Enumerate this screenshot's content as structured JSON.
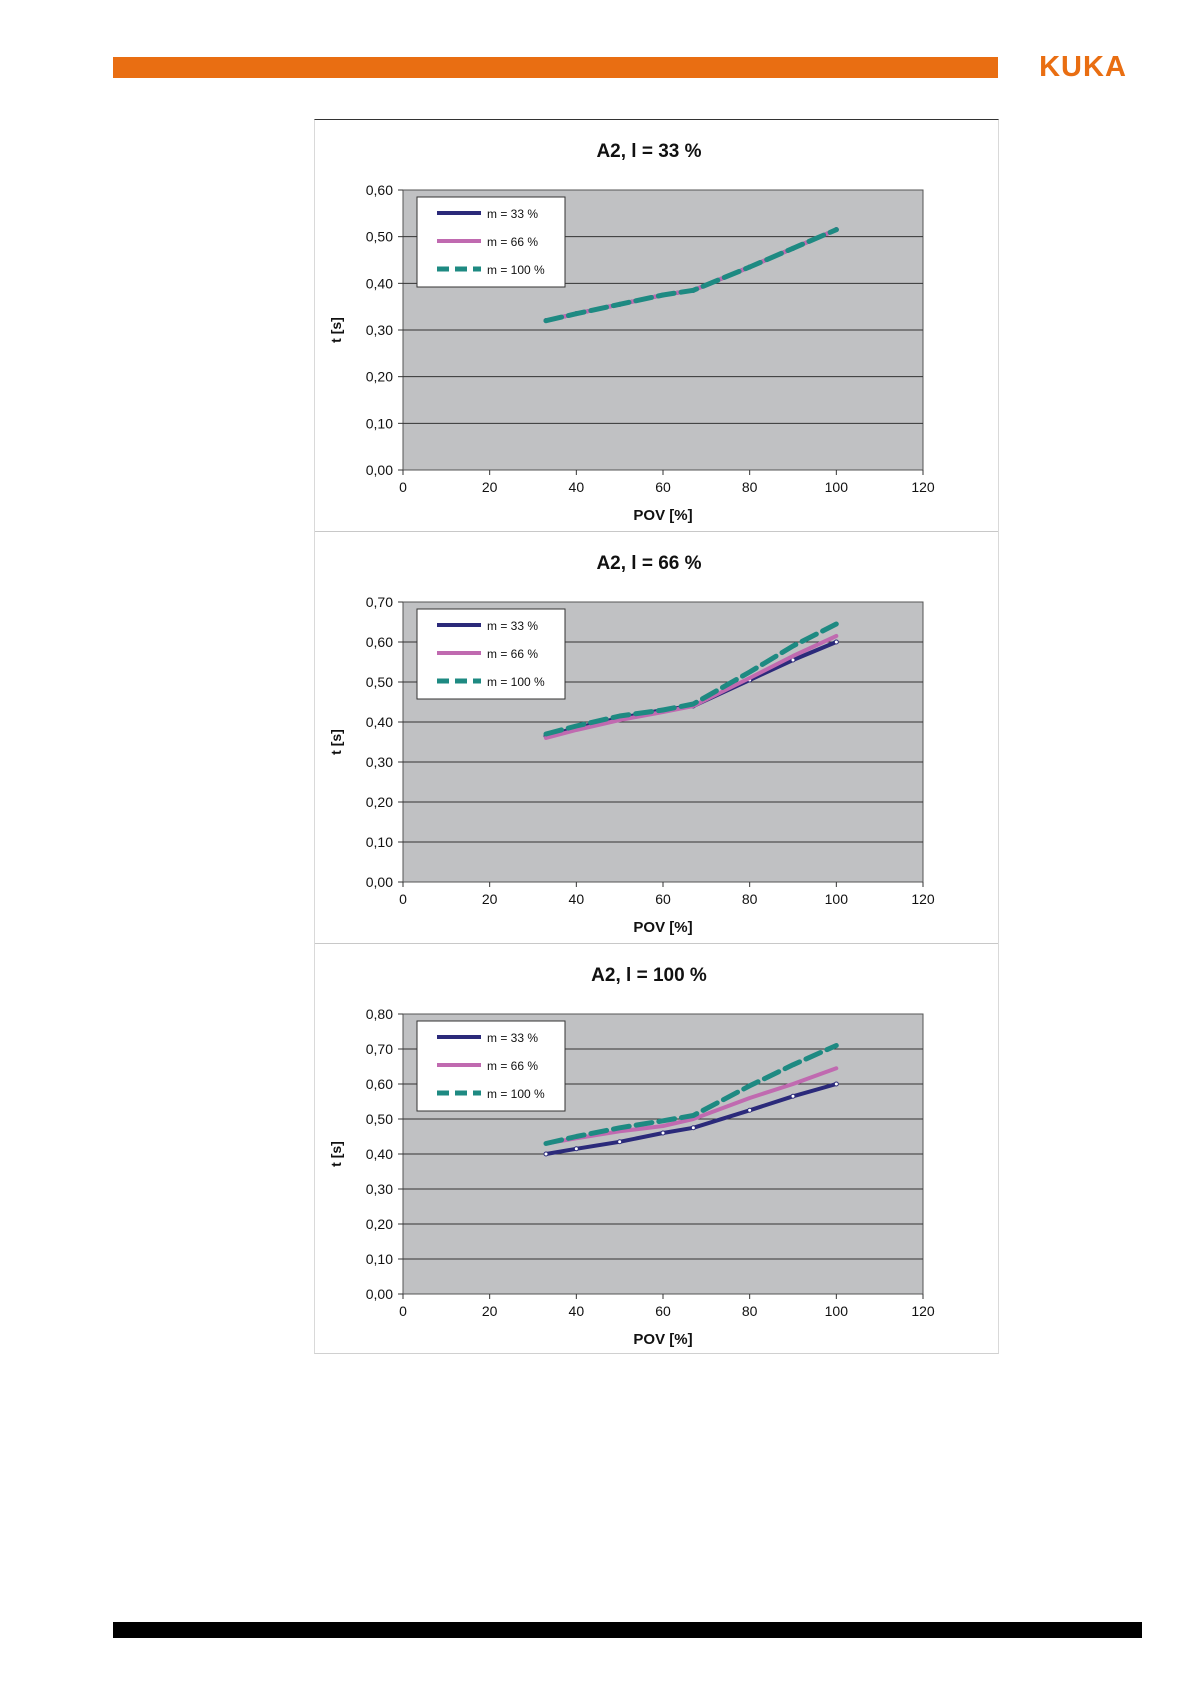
{
  "brand": {
    "logo_text": "KUKA",
    "accent_color": "#e96e12"
  },
  "chart_data": [
    {
      "type": "line",
      "title": "A2, l = 33 %",
      "xlabel": "POV [%]",
      "ylabel": "t [s]",
      "xlim": [
        0,
        120
      ],
      "ylim": [
        0,
        0.6
      ],
      "xticks": [
        "0",
        "20",
        "40",
        "60",
        "80",
        "100",
        "120"
      ],
      "yticks": [
        "0,00",
        "0,10",
        "0,20",
        "0,30",
        "0,40",
        "0,50",
        "0,60"
      ],
      "x": [
        33,
        40,
        50,
        60,
        67,
        80,
        90,
        100
      ],
      "series": [
        {
          "name": "m = 33 %",
          "values": [
            0.32,
            0.335,
            0.355,
            0.375,
            0.385,
            0.435,
            0.475,
            0.515
          ]
        },
        {
          "name": "m = 66 %",
          "values": [
            0.32,
            0.335,
            0.355,
            0.375,
            0.385,
            0.435,
            0.475,
            0.515
          ]
        },
        {
          "name": "m = 100 %",
          "values": [
            0.32,
            0.335,
            0.355,
            0.375,
            0.385,
            0.435,
            0.475,
            0.515
          ]
        }
      ],
      "grid": true,
      "legend": "top-left"
    },
    {
      "type": "line",
      "title": "A2, l = 66 %",
      "xlabel": "POV [%]",
      "ylabel": "t [s]",
      "xlim": [
        0,
        120
      ],
      "ylim": [
        0,
        0.7
      ],
      "xticks": [
        "0",
        "20",
        "40",
        "60",
        "80",
        "100",
        "120"
      ],
      "yticks": [
        "0,00",
        "0,10",
        "0,20",
        "0,30",
        "0,40",
        "0,50",
        "0,60",
        "0,70"
      ],
      "x": [
        33,
        40,
        50,
        60,
        67,
        80,
        90,
        100
      ],
      "series": [
        {
          "name": "m = 33 %",
          "values": [
            0.365,
            0.385,
            0.41,
            0.43,
            0.44,
            0.505,
            0.555,
            0.6
          ]
        },
        {
          "name": "m = 66 %",
          "values": [
            0.36,
            0.38,
            0.405,
            0.425,
            0.44,
            0.51,
            0.565,
            0.615
          ]
        },
        {
          "name": "m = 100 %",
          "values": [
            0.37,
            0.39,
            0.415,
            0.43,
            0.445,
            0.525,
            0.59,
            0.645
          ]
        }
      ],
      "grid": true,
      "legend": "top-left"
    },
    {
      "type": "line",
      "title": "A2, l = 100 %",
      "xlabel": "POV [%]",
      "ylabel": "t [s]",
      "xlim": [
        0,
        120
      ],
      "ylim": [
        0,
        0.8
      ],
      "xticks": [
        "0",
        "20",
        "40",
        "60",
        "80",
        "100",
        "120"
      ],
      "yticks": [
        "0,00",
        "0,10",
        "0,20",
        "0,30",
        "0,40",
        "0,50",
        "0,60",
        "0,70",
        "0,80"
      ],
      "x": [
        33,
        40,
        50,
        60,
        67,
        80,
        90,
        100
      ],
      "series": [
        {
          "name": "m = 33 %",
          "values": [
            0.4,
            0.415,
            0.435,
            0.46,
            0.475,
            0.525,
            0.565,
            0.6
          ]
        },
        {
          "name": "m = 66 %",
          "values": [
            0.43,
            0.445,
            0.465,
            0.48,
            0.5,
            0.56,
            0.6,
            0.645
          ]
        },
        {
          "name": "m = 100 %",
          "values": [
            0.43,
            0.45,
            0.475,
            0.495,
            0.51,
            0.595,
            0.655,
            0.71
          ]
        }
      ],
      "grid": true,
      "legend": "top-left"
    }
  ]
}
